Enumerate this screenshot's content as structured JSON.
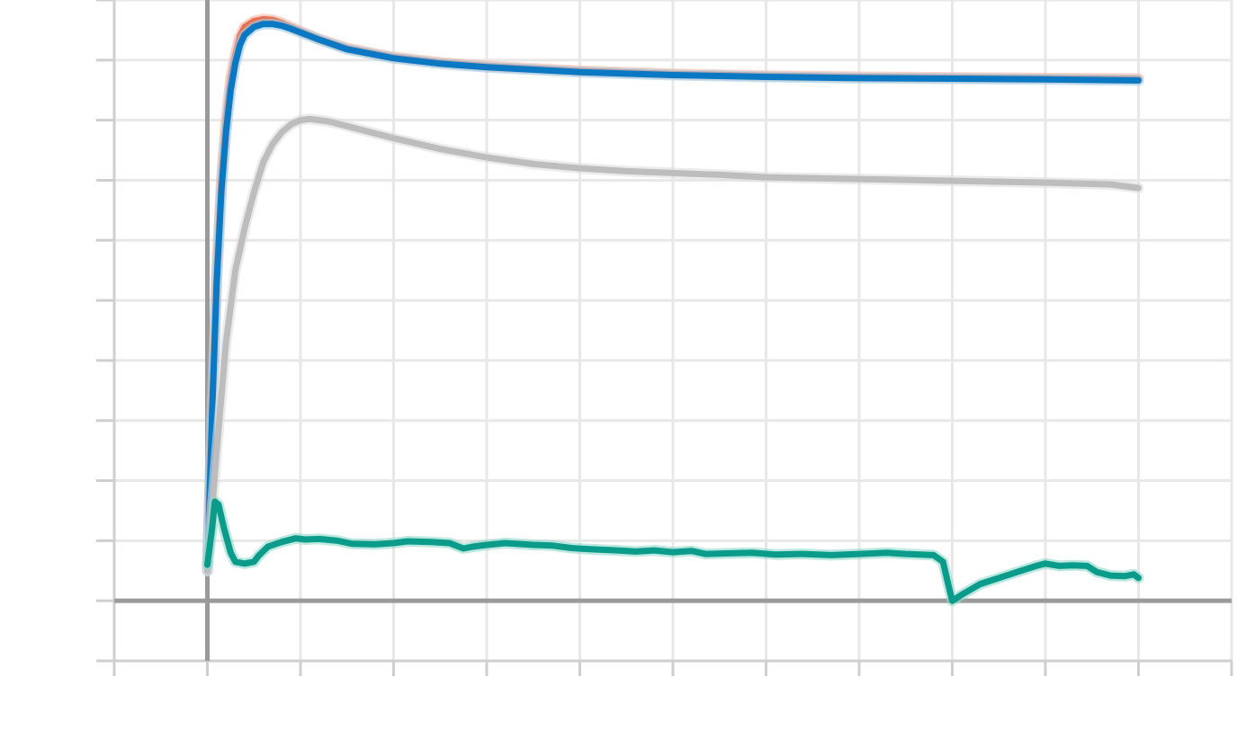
{
  "chart_data": {
    "type": "line",
    "title": "",
    "xlabel": "",
    "ylabel": "",
    "x_tick_labels": [],
    "y_tick_labels": [],
    "xlim": [
      -1,
      11
    ],
    "ylim": [
      -1,
      10
    ],
    "x_grid_values": [
      -1,
      0,
      1,
      2,
      3,
      4,
      5,
      6,
      7,
      8,
      9,
      10,
      11
    ],
    "y_grid_values": [
      -1,
      0,
      1,
      2,
      3,
      4,
      5,
      6,
      7,
      8,
      9,
      10
    ],
    "grid": true,
    "legend": "none",
    "background_color": "#ffffff",
    "series": [
      {
        "color": "#e8704f",
        "band_color": "#f3b6a3",
        "points": [
          [
            0,
            0.5
          ],
          [
            0.05,
            3.2
          ],
          [
            0.1,
            5.5
          ],
          [
            0.15,
            7.0
          ],
          [
            0.2,
            8.0
          ],
          [
            0.25,
            8.7
          ],
          [
            0.3,
            9.1
          ],
          [
            0.35,
            9.4
          ],
          [
            0.4,
            9.55
          ],
          [
            0.5,
            9.65
          ],
          [
            0.6,
            9.68
          ],
          [
            0.7,
            9.67
          ],
          [
            0.8,
            9.62
          ],
          [
            0.9,
            9.55
          ],
          [
            1,
            9.48
          ],
          [
            1.2,
            9.35
          ],
          [
            1.5,
            9.2
          ],
          [
            2,
            9.05
          ],
          [
            2.5,
            8.96
          ],
          [
            3,
            8.9
          ],
          [
            4,
            8.82
          ],
          [
            5,
            8.77
          ],
          [
            6,
            8.74
          ],
          [
            7,
            8.72
          ],
          [
            8,
            8.71
          ],
          [
            9,
            8.7
          ],
          [
            10,
            8.69
          ]
        ]
      },
      {
        "color": "#0a78c2",
        "band_color": "#9ccbe8",
        "points": [
          [
            0,
            0.5
          ],
          [
            0.05,
            3.1
          ],
          [
            0.1,
            5.3
          ],
          [
            0.15,
            6.8
          ],
          [
            0.2,
            7.8
          ],
          [
            0.25,
            8.5
          ],
          [
            0.3,
            8.95
          ],
          [
            0.35,
            9.25
          ],
          [
            0.4,
            9.42
          ],
          [
            0.5,
            9.55
          ],
          [
            0.6,
            9.6
          ],
          [
            0.7,
            9.6
          ],
          [
            0.8,
            9.57
          ],
          [
            0.9,
            9.52
          ],
          [
            1,
            9.46
          ],
          [
            1.2,
            9.34
          ],
          [
            1.5,
            9.18
          ],
          [
            2,
            9.03
          ],
          [
            2.5,
            8.94
          ],
          [
            3,
            8.88
          ],
          [
            4,
            8.8
          ],
          [
            5,
            8.75
          ],
          [
            6,
            8.72
          ],
          [
            7,
            8.7
          ],
          [
            8,
            8.69
          ],
          [
            9,
            8.68
          ],
          [
            10,
            8.66
          ]
        ]
      },
      {
        "color": "#bdbdbd",
        "band_color": "#dddddd",
        "points": [
          [
            0,
            0.5
          ],
          [
            0.1,
            2.5
          ],
          [
            0.2,
            4.3
          ],
          [
            0.3,
            5.5
          ],
          [
            0.4,
            6.2
          ],
          [
            0.5,
            6.8
          ],
          [
            0.6,
            7.3
          ],
          [
            0.7,
            7.6
          ],
          [
            0.8,
            7.8
          ],
          [
            0.9,
            7.93
          ],
          [
            1,
            8.0
          ],
          [
            1.1,
            8.02
          ],
          [
            1.3,
            7.98
          ],
          [
            1.5,
            7.9
          ],
          [
            2,
            7.7
          ],
          [
            2.5,
            7.52
          ],
          [
            3,
            7.38
          ],
          [
            3.5,
            7.27
          ],
          [
            4,
            7.2
          ],
          [
            4.5,
            7.15
          ],
          [
            5,
            7.12
          ],
          [
            5.5,
            7.09
          ],
          [
            6,
            7.05
          ],
          [
            7,
            7.02
          ],
          [
            8,
            6.99
          ],
          [
            9,
            6.96
          ],
          [
            9.7,
            6.93
          ],
          [
            10,
            6.87
          ]
        ]
      },
      {
        "color": "#0a9b8a",
        "band_color": "#8fd8cc",
        "points": [
          [
            0,
            0.6
          ],
          [
            0.05,
            1.2
          ],
          [
            0.08,
            1.65
          ],
          [
            0.12,
            1.6
          ],
          [
            0.18,
            1.2
          ],
          [
            0.25,
            0.8
          ],
          [
            0.3,
            0.65
          ],
          [
            0.4,
            0.62
          ],
          [
            0.5,
            0.65
          ],
          [
            0.55,
            0.75
          ],
          [
            0.65,
            0.9
          ],
          [
            0.8,
            0.98
          ],
          [
            0.95,
            1.04
          ],
          [
            1.05,
            1.02
          ],
          [
            1.2,
            1.03
          ],
          [
            1.4,
            1.0
          ],
          [
            1.55,
            0.95
          ],
          [
            1.8,
            0.94
          ],
          [
            2.0,
            0.96
          ],
          [
            2.15,
            0.99
          ],
          [
            2.4,
            0.98
          ],
          [
            2.6,
            0.96
          ],
          [
            2.75,
            0.87
          ],
          [
            2.85,
            0.9
          ],
          [
            3.0,
            0.93
          ],
          [
            3.2,
            0.96
          ],
          [
            3.5,
            0.93
          ],
          [
            3.7,
            0.92
          ],
          [
            3.9,
            0.88
          ],
          [
            4.1,
            0.86
          ],
          [
            4.4,
            0.84
          ],
          [
            4.6,
            0.82
          ],
          [
            4.8,
            0.84
          ],
          [
            5.0,
            0.81
          ],
          [
            5.2,
            0.83
          ],
          [
            5.35,
            0.78
          ],
          [
            5.6,
            0.79
          ],
          [
            5.85,
            0.8
          ],
          [
            6.1,
            0.77
          ],
          [
            6.4,
            0.78
          ],
          [
            6.7,
            0.76
          ],
          [
            7.0,
            0.78
          ],
          [
            7.3,
            0.8
          ],
          [
            7.5,
            0.78
          ],
          [
            7.8,
            0.76
          ],
          [
            7.9,
            0.65
          ],
          [
            7.96,
            0.25
          ],
          [
            8.0,
            0.0
          ],
          [
            8.1,
            0.1
          ],
          [
            8.3,
            0.28
          ],
          [
            8.5,
            0.38
          ],
          [
            8.7,
            0.48
          ],
          [
            8.9,
            0.58
          ],
          [
            9.0,
            0.62
          ],
          [
            9.15,
            0.58
          ],
          [
            9.3,
            0.59
          ],
          [
            9.45,
            0.58
          ],
          [
            9.55,
            0.48
          ],
          [
            9.7,
            0.42
          ],
          [
            9.85,
            0.41
          ],
          [
            9.95,
            0.44
          ],
          [
            10,
            0.38
          ]
        ]
      }
    ]
  }
}
